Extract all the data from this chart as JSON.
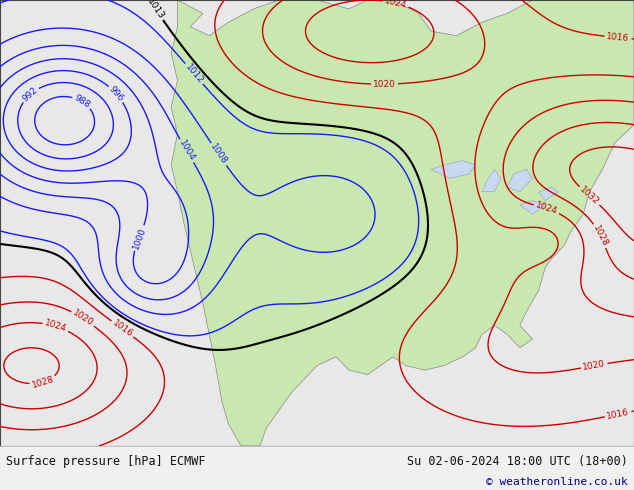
{
  "title_left": "Surface pressure [hPa] ECMWF",
  "title_right": "Su 02-06-2024 18:00 UTC (18+00)",
  "copyright": "© weatheronline.co.uk",
  "fig_width": 6.34,
  "fig_height": 4.9,
  "dpi": 100,
  "bg_color": "#e8e8e8",
  "land_color": "#c8e8b0",
  "ocean_color": "#e0e0e0",
  "water_color": "#c8d8f0",
  "text_color": "#111111",
  "copyright_color": "#00008B",
  "label_fontsize": 8.5,
  "copyright_fontsize": 8,
  "bottom_bar_color": "#f0f0f0"
}
